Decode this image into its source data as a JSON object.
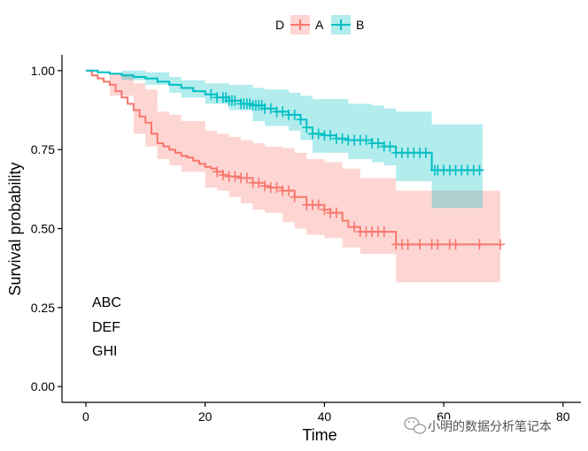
{
  "chart_data": {
    "type": "line",
    "subtype": "kaplan-meier",
    "title": "",
    "xlabel": "Time",
    "ylabel": "Survival probability",
    "xlim": [
      -4,
      83
    ],
    "ylim": [
      -0.05,
      1.05
    ],
    "x_ticks": [
      0,
      20,
      40,
      60,
      80
    ],
    "x_tick_labels": [
      "0",
      "20",
      "40",
      "60",
      "80"
    ],
    "y_ticks": [
      0.0,
      0.25,
      0.5,
      0.75,
      1.0
    ],
    "y_tick_labels": [
      "0.00",
      "0.25",
      "0.50",
      "0.75",
      "1.00"
    ],
    "grid": false,
    "legend": {
      "position": "top",
      "title": "D",
      "entries": [
        "A",
        "B"
      ]
    },
    "annotations": [
      "ABC",
      "DEF",
      "GHI"
    ],
    "watermark": "小明的数据分析笔记本",
    "series": [
      {
        "name": "A",
        "color": "#F8766D",
        "band_color": "#F8766D",
        "band_opacity": 0.3,
        "steps": [
          [
            0,
            1.0
          ],
          [
            1,
            0.985
          ],
          [
            2,
            0.975
          ],
          [
            3,
            0.965
          ],
          [
            4,
            0.955
          ],
          [
            5,
            0.935
          ],
          [
            6,
            0.915
          ],
          [
            7,
            0.895
          ],
          [
            8,
            0.875
          ],
          [
            9,
            0.855
          ],
          [
            10,
            0.835
          ],
          [
            11,
            0.8
          ],
          [
            12,
            0.77
          ],
          [
            13,
            0.76
          ],
          [
            14,
            0.75
          ],
          [
            15,
            0.74
          ],
          [
            16,
            0.73
          ],
          [
            17,
            0.725
          ],
          [
            18,
            0.715
          ],
          [
            19,
            0.705
          ],
          [
            20,
            0.695
          ],
          [
            21,
            0.69
          ],
          [
            22,
            0.68
          ],
          [
            23,
            0.67
          ],
          [
            24,
            0.665
          ],
          [
            26,
            0.66
          ],
          [
            28,
            0.645
          ],
          [
            30,
            0.635
          ],
          [
            31,
            0.63
          ],
          [
            33,
            0.62
          ],
          [
            35,
            0.6
          ],
          [
            37,
            0.575
          ],
          [
            40,
            0.56
          ],
          [
            41,
            0.55
          ],
          [
            43,
            0.525
          ],
          [
            44,
            0.505
          ],
          [
            46,
            0.49
          ],
          [
            52,
            0.45
          ],
          [
            69.5,
            0.45
          ]
        ],
        "upper": [
          [
            0,
            1.0
          ],
          [
            4,
            0.99
          ],
          [
            8,
            0.96
          ],
          [
            10,
            0.94
          ],
          [
            12,
            0.87
          ],
          [
            14,
            0.86
          ],
          [
            16,
            0.84
          ],
          [
            20,
            0.81
          ],
          [
            22,
            0.8
          ],
          [
            24,
            0.79
          ],
          [
            26,
            0.78
          ],
          [
            28,
            0.77
          ],
          [
            30,
            0.76
          ],
          [
            33,
            0.755
          ],
          [
            35,
            0.74
          ],
          [
            37,
            0.72
          ],
          [
            40,
            0.71
          ],
          [
            43,
            0.69
          ],
          [
            46,
            0.66
          ],
          [
            52,
            0.62
          ],
          [
            69.5,
            0.62
          ]
        ],
        "lower": [
          [
            0,
            1.0
          ],
          [
            4,
            0.92
          ],
          [
            8,
            0.8
          ],
          [
            10,
            0.76
          ],
          [
            12,
            0.72
          ],
          [
            14,
            0.7
          ],
          [
            16,
            0.68
          ],
          [
            20,
            0.63
          ],
          [
            22,
            0.62
          ],
          [
            24,
            0.6
          ],
          [
            26,
            0.58
          ],
          [
            28,
            0.56
          ],
          [
            30,
            0.55
          ],
          [
            33,
            0.52
          ],
          [
            35,
            0.5
          ],
          [
            37,
            0.48
          ],
          [
            40,
            0.47
          ],
          [
            43,
            0.44
          ],
          [
            46,
            0.42
          ],
          [
            52,
            0.33
          ],
          [
            69.5,
            0.33
          ]
        ],
        "censored": [
          22,
          23,
          24,
          25,
          26,
          27,
          28,
          29,
          30,
          31,
          32,
          33,
          34,
          35,
          37,
          38,
          39,
          40,
          41,
          42,
          45,
          46,
          47,
          48,
          49,
          50,
          52,
          53,
          54,
          56,
          58,
          59,
          61,
          62,
          66,
          69.5
        ]
      },
      {
        "name": "B",
        "color": "#00BFC4",
        "band_color": "#00BFC4",
        "band_opacity": 0.3,
        "steps": [
          [
            0,
            1.0
          ],
          [
            2,
            0.995
          ],
          [
            4,
            0.99
          ],
          [
            6,
            0.985
          ],
          [
            8,
            0.98
          ],
          [
            10,
            0.975
          ],
          [
            12,
            0.965
          ],
          [
            14,
            0.955
          ],
          [
            16,
            0.945
          ],
          [
            18,
            0.935
          ],
          [
            20,
            0.925
          ],
          [
            22,
            0.915
          ],
          [
            24,
            0.905
          ],
          [
            26,
            0.895
          ],
          [
            28,
            0.89
          ],
          [
            30,
            0.88
          ],
          [
            32,
            0.87
          ],
          [
            34,
            0.86
          ],
          [
            36,
            0.845
          ],
          [
            37,
            0.82
          ],
          [
            38,
            0.8
          ],
          [
            40,
            0.795
          ],
          [
            42,
            0.785
          ],
          [
            44,
            0.78
          ],
          [
            48,
            0.77
          ],
          [
            50,
            0.76
          ],
          [
            52,
            0.74
          ],
          [
            58,
            0.685
          ],
          [
            66.5,
            0.685
          ]
        ],
        "upper": [
          [
            0,
            1.0
          ],
          [
            6,
            1.0
          ],
          [
            10,
            0.995
          ],
          [
            14,
            0.98
          ],
          [
            16,
            0.97
          ],
          [
            20,
            0.96
          ],
          [
            24,
            0.955
          ],
          [
            28,
            0.945
          ],
          [
            30,
            0.94
          ],
          [
            34,
            0.93
          ],
          [
            36,
            0.92
          ],
          [
            38,
            0.91
          ],
          [
            44,
            0.895
          ],
          [
            48,
            0.89
          ],
          [
            50,
            0.88
          ],
          [
            52,
            0.87
          ],
          [
            58,
            0.83
          ],
          [
            66.5,
            0.83
          ]
        ],
        "lower": [
          [
            0,
            1.0
          ],
          [
            6,
            0.97
          ],
          [
            10,
            0.955
          ],
          [
            14,
            0.93
          ],
          [
            16,
            0.915
          ],
          [
            20,
            0.895
          ],
          [
            24,
            0.875
          ],
          [
            28,
            0.84
          ],
          [
            30,
            0.825
          ],
          [
            34,
            0.81
          ],
          [
            36,
            0.78
          ],
          [
            38,
            0.74
          ],
          [
            44,
            0.72
          ],
          [
            48,
            0.71
          ],
          [
            50,
            0.7
          ],
          [
            52,
            0.65
          ],
          [
            58,
            0.565
          ],
          [
            66.5,
            0.565
          ]
        ],
        "censored": [
          21,
          22,
          23,
          23.5,
          24,
          24.5,
          25,
          26,
          26.5,
          27,
          27.5,
          28,
          28.5,
          29,
          29.5,
          30,
          31,
          32,
          33,
          34,
          35,
          36,
          37,
          38,
          39,
          40,
          41,
          42,
          43,
          44,
          45,
          46,
          47,
          48,
          49,
          50,
          51,
          52,
          53,
          54,
          55,
          56,
          57,
          58.5,
          59,
          60,
          61,
          62,
          63,
          64,
          65,
          66
        ]
      }
    ]
  }
}
